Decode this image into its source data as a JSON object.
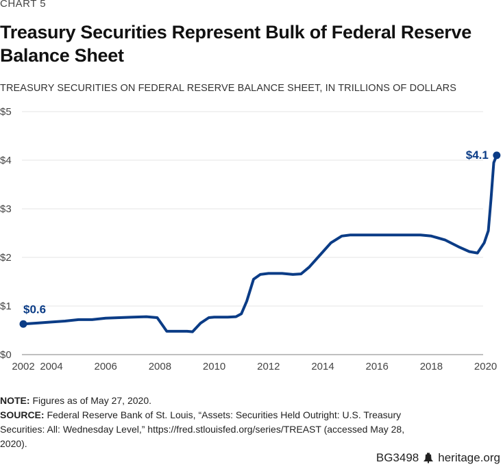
{
  "kicker": "CHART 5",
  "title": "Treasury Securities Represent Bulk of Federal Reserve Balance Sheet",
  "subtitle": "TREASURY SECURITIES ON FEDERAL RESERVE BALANCE SHEET, IN TRILLIONS OF DOLLARS",
  "note_label": "NOTE:",
  "note_text": " Figures as of May 27, 2020.",
  "source_label": "SOURCE:",
  "source_text": " Federal Reserve Bank of St. Louis, “Assets: Securities Held Outright: U.S. Treasury Securities: All: Wednesday Level,” https://fred.stlouisfed.org/series/TREAST (accessed May 28, 2020).",
  "footer": {
    "code": "BG3498",
    "icon": "liberty-bell-icon",
    "site": "heritage.org"
  },
  "colors": {
    "line": "#0b3c86",
    "grid": "#e6e6e6",
    "axis": "#999999"
  },
  "chart_data": {
    "type": "line",
    "title": "Treasury Securities Represent Bulk of Federal Reserve Balance Sheet",
    "ylabel": "Trillions of dollars",
    "xlabel": "",
    "ylim": [
      0,
      5
    ],
    "yticks": [
      0,
      1,
      2,
      3,
      4,
      5
    ],
    "ytick_labels": [
      "$0",
      "$1",
      "$2",
      "$3",
      "$4",
      "$5"
    ],
    "xticks": [
      2002,
      2004,
      2006,
      2008,
      2010,
      2012,
      2014,
      2016,
      2018,
      2020
    ],
    "grid": true,
    "series": [
      {
        "name": "Treasury Securities",
        "x": [
          2003.0,
          2003.5,
          2004.0,
          2004.5,
          2005.0,
          2005.5,
          2006.0,
          2006.5,
          2007.0,
          2007.5,
          2007.9,
          2008.1,
          2008.25,
          2008.5,
          2009.0,
          2009.2,
          2009.5,
          2009.8,
          2010.0,
          2010.5,
          2010.8,
          2011.0,
          2011.2,
          2011.45,
          2011.7,
          2012.0,
          2012.5,
          2012.9,
          2013.2,
          2013.5,
          2013.9,
          2014.3,
          2014.7,
          2015.0,
          2016.0,
          2017.0,
          2017.6,
          2018.0,
          2018.5,
          2019.0,
          2019.4,
          2019.7,
          2019.95,
          2020.1,
          2020.2,
          2020.3,
          2020.41
        ],
        "values": [
          0.63,
          0.65,
          0.67,
          0.69,
          0.72,
          0.72,
          0.75,
          0.76,
          0.77,
          0.78,
          0.76,
          0.6,
          0.48,
          0.48,
          0.48,
          0.47,
          0.65,
          0.76,
          0.77,
          0.77,
          0.78,
          0.84,
          1.1,
          1.55,
          1.65,
          1.67,
          1.67,
          1.65,
          1.66,
          1.8,
          2.05,
          2.3,
          2.44,
          2.46,
          2.46,
          2.46,
          2.46,
          2.44,
          2.36,
          2.22,
          2.12,
          2.09,
          2.3,
          2.55,
          3.2,
          3.95,
          4.1
        ]
      }
    ],
    "annotations": [
      {
        "label": "$0.6",
        "x": 2003.0,
        "y": 0.63
      },
      {
        "label": "$4.1",
        "x": 2020.41,
        "y": 4.1
      }
    ]
  }
}
